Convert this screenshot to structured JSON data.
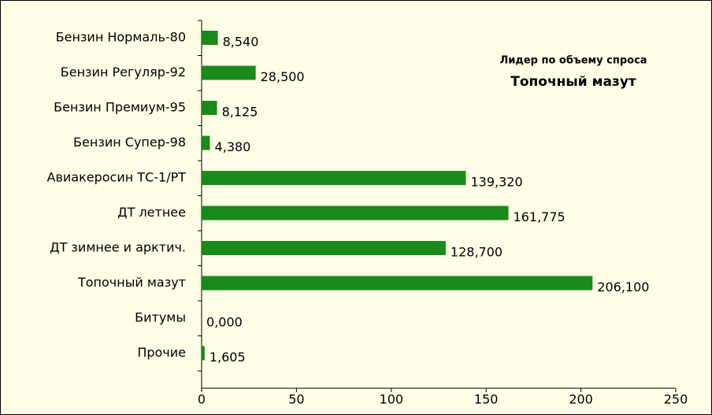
{
  "chart_data": {
    "type": "bar",
    "orientation": "horizontal",
    "categories": [
      "Бензин Нормаль-80",
      "Бензин Регуляр-92",
      "Бензин Премиум-95",
      "Бензин Супер-98",
      "Авиакеросин ТС-1/РТ",
      "ДТ летнее",
      "ДТ зимнее и арктич.",
      "Топочный мазут",
      "Битумы",
      "Прочие"
    ],
    "values": [
      8.54,
      28.5,
      8.125,
      4.38,
      139.32,
      161.775,
      128.7,
      206.1,
      0,
      1.605
    ],
    "value_labels": [
      "8,540",
      "28,500",
      "8,125",
      "4,380",
      "139,320",
      "161,775",
      "128,700",
      "206,100",
      "0,000",
      "1,605"
    ],
    "color": "#1a8a1a",
    "xlim": [
      0,
      250
    ],
    "xticks": [
      0,
      50,
      100,
      150,
      200,
      250
    ],
    "annotation": {
      "title": "Лидер по объему спроса",
      "value": "Топочный мазут"
    }
  }
}
